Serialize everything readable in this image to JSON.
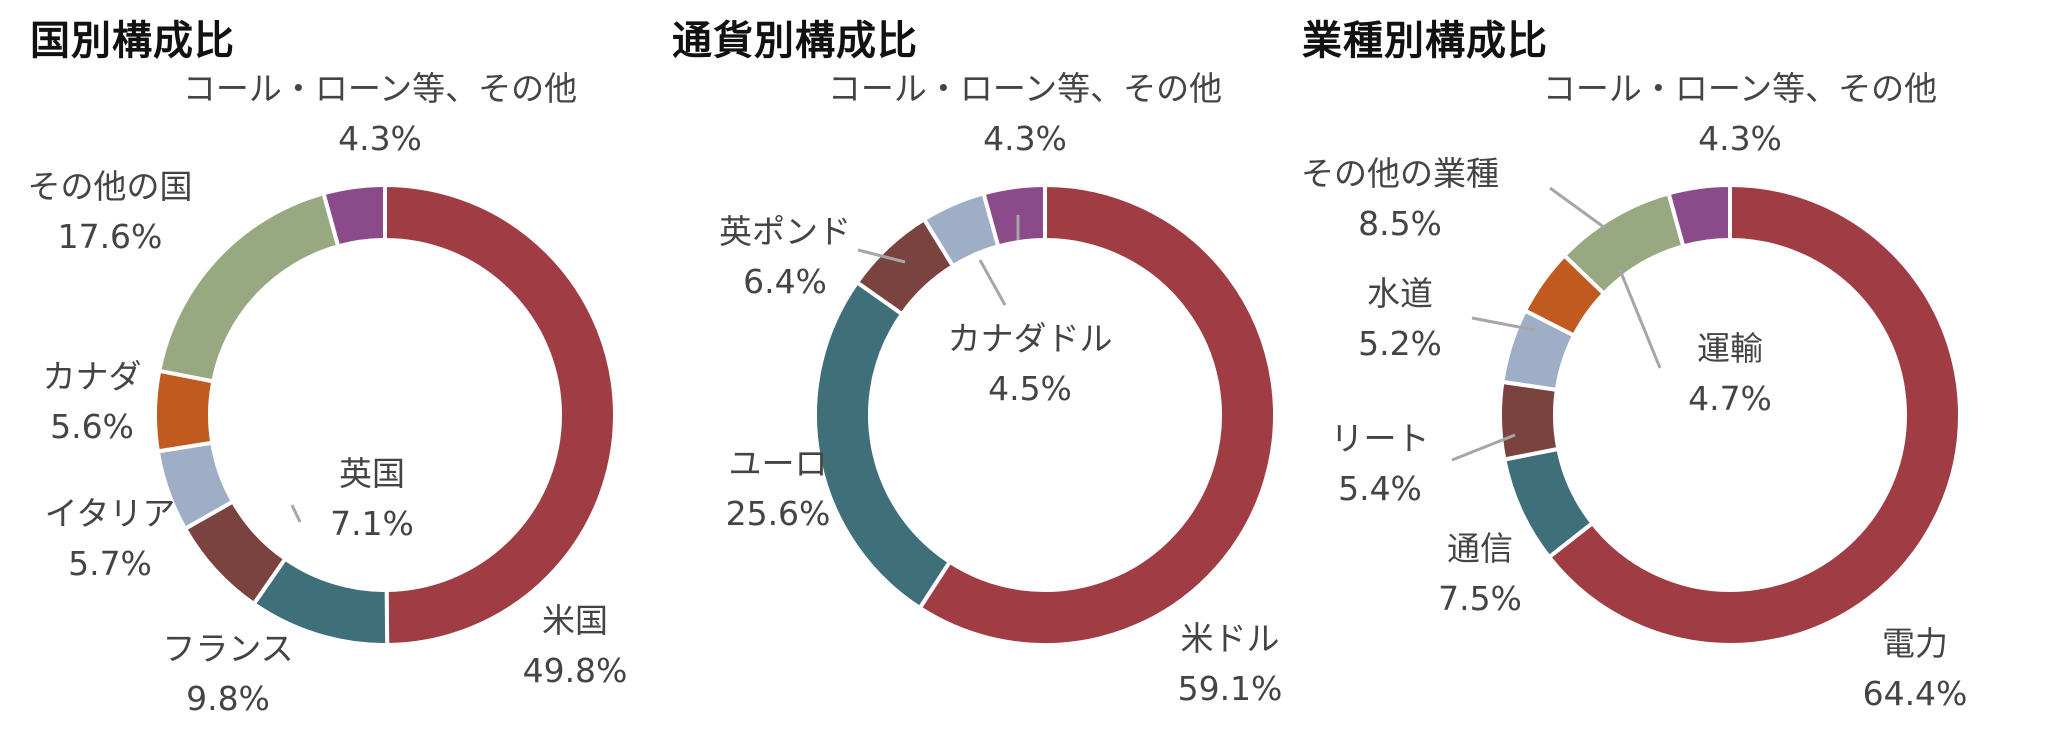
{
  "chart_data": [
    {
      "type": "pie",
      "donut": true,
      "title": "国別構成比",
      "categories": [
        "米国",
        "フランス",
        "英国",
        "イタリア",
        "カナダ",
        "その他の国",
        "コール・ローン等、その他"
      ],
      "values": [
        49.8,
        9.8,
        7.1,
        5.7,
        5.6,
        17.6,
        4.3
      ],
      "value_labels": [
        "49.8%",
        "9.8%",
        "7.1%",
        "5.7%",
        "5.6%",
        "17.6%",
        "4.3%"
      ],
      "colors": [
        "#9f3c44",
        "#3f707a",
        "#7b4340",
        "#9eaec6",
        "#c05a1e",
        "#98a982",
        "#8b4a8a"
      ]
    },
    {
      "type": "pie",
      "donut": true,
      "title": "通貨別構成比",
      "categories": [
        "米ドル",
        "ユーロ",
        "英ポンド",
        "カナダドル",
        "コール・ローン等、その他"
      ],
      "values": [
        59.1,
        25.6,
        6.4,
        4.5,
        4.3
      ],
      "value_labels": [
        "59.1%",
        "25.6%",
        "6.4%",
        "4.5%",
        "4.3%"
      ],
      "colors": [
        "#9f3c44",
        "#3f707a",
        "#7b4340",
        "#9eaec6",
        "#8b4a8a"
      ]
    },
    {
      "type": "pie",
      "donut": true,
      "title": "業種別構成比",
      "categories": [
        "電力",
        "通信",
        "リート",
        "水道",
        "運輸",
        "その他の業種",
        "コール・ローン等、その他"
      ],
      "values": [
        64.4,
        7.5,
        5.4,
        5.2,
        4.7,
        8.5,
        4.3
      ],
      "value_labels": [
        "64.4%",
        "7.5%",
        "5.4%",
        "5.2%",
        "4.7%",
        "8.5%",
        "4.3%"
      ],
      "colors": [
        "#9f3c44",
        "#3f707a",
        "#7b4340",
        "#9eaec6",
        "#c05a1e",
        "#98a982",
        "#8b4a8a"
      ]
    }
  ]
}
